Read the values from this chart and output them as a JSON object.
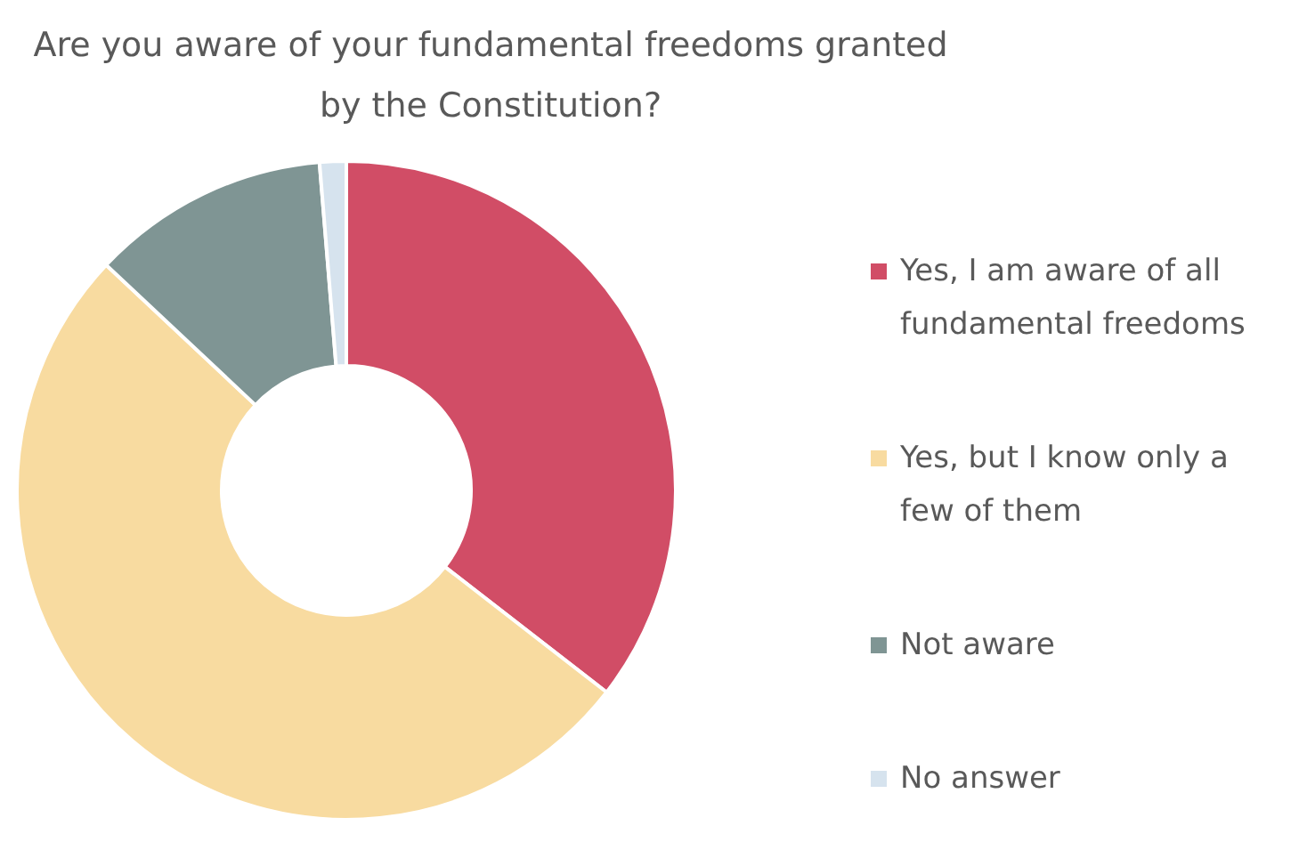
{
  "chart_data": {
    "type": "donut",
    "title": "Are you aware of your fundamental freedoms granted by the Constitution?",
    "categories": [
      "Yes, I am aware of all fundamental freedoms",
      "Yes, but I know only a few of them",
      "Not aware",
      "No answer"
    ],
    "values": [
      35.5,
      51.5,
      11.7,
      1.3
    ],
    "colors": [
      "#d14d66",
      "#f8dba0",
      "#7f9594",
      "#d6e3ee"
    ],
    "legend": "right"
  }
}
